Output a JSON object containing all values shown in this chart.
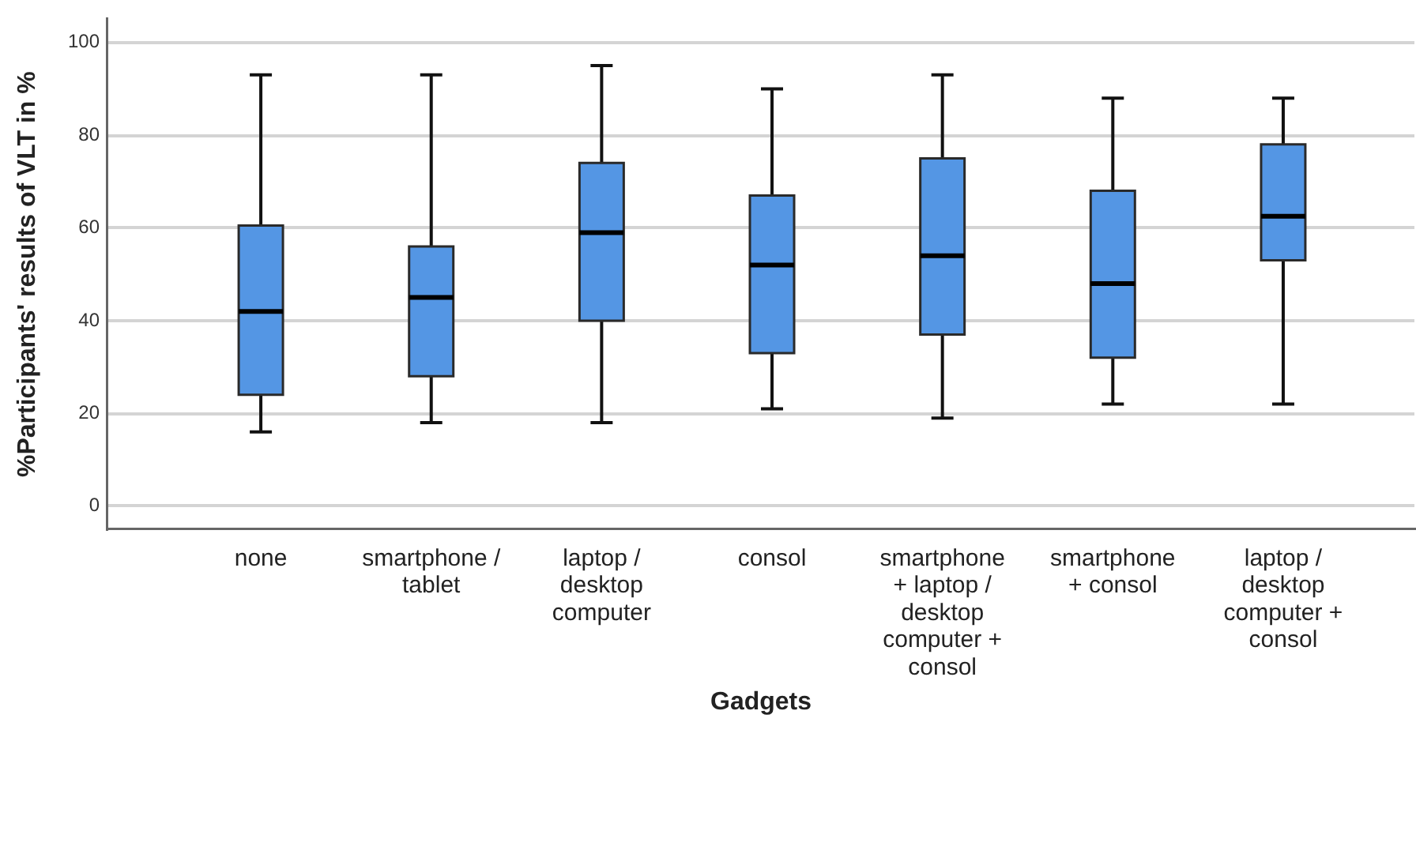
{
  "chart_data": {
    "type": "box",
    "xlabel": "Gadgets",
    "ylabel": "%Participants' results of VLT in %",
    "categories": [
      "none",
      "smartphone / tablet",
      "laptop / desktop computer",
      "consol",
      "smartphone + laptop / desktop computer + consol",
      "smartphone + consol",
      "laptop / desktop computer + consol"
    ],
    "series": [
      {
        "color": "#5496e4",
        "boxes": [
          {
            "low": 16,
            "q1": 24,
            "median": 42,
            "q3": 60.5,
            "high": 93
          },
          {
            "low": 18,
            "q1": 28,
            "median": 45,
            "q3": 56,
            "high": 93
          },
          {
            "low": 18,
            "q1": 40,
            "median": 59,
            "q3": 74,
            "high": 95
          },
          {
            "low": 21,
            "q1": 33,
            "median": 52,
            "q3": 67,
            "high": 90
          },
          {
            "low": 19,
            "q1": 37,
            "median": 54,
            "q3": 75,
            "high": 93
          },
          {
            "low": 22,
            "q1": 32,
            "median": 48,
            "q3": 68,
            "high": 88
          },
          {
            "low": 22,
            "q1": 53,
            "median": 62.5,
            "q3": 78,
            "high": 88
          }
        ]
      }
    ],
    "ylim": [
      -5,
      105
    ],
    "yticks": [
      0,
      20,
      40,
      60,
      80,
      100
    ],
    "grid": "y"
  }
}
